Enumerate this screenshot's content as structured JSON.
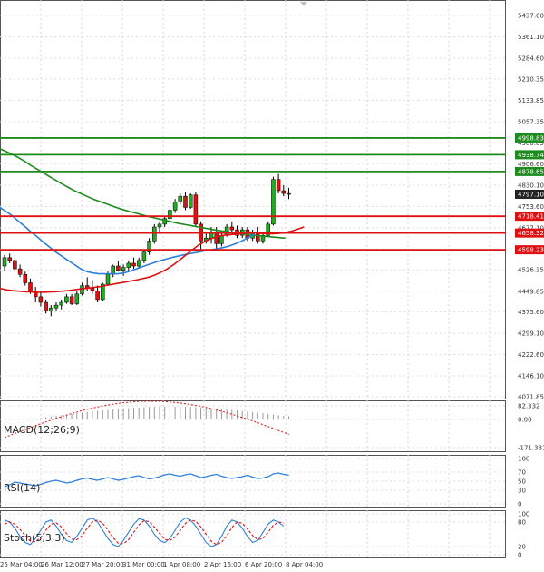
{
  "chart_data": {
    "type": "candlestick",
    "main": {
      "ylim": [
        4071.85,
        5437.6
      ],
      "ytick_labels": [
        "5437.60",
        "5361.10",
        "5284.60",
        "5210.35",
        "5133.85",
        "5057.35",
        "4980.85",
        "4906.60",
        "4830.10",
        "4753.60",
        "4677.10",
        "4600.60",
        "4526.35",
        "4449.85",
        "4375.60",
        "4299.10",
        "4222.60",
        "4146.10",
        "4071.85"
      ],
      "last_price": 4797.1,
      "last_price_label": "4797.10",
      "levels": [
        {
          "value": 4998.83,
          "label": "4998.83",
          "color": "#1e8b1e"
        },
        {
          "value": 4938.74,
          "label": "4938.74",
          "color": "#1e8b1e"
        },
        {
          "value": 4878.65,
          "label": "4878.65",
          "color": "#1e8b1e"
        },
        {
          "value": 4718.41,
          "label": "4718.41",
          "color": "#dd1111"
        },
        {
          "value": 4658.32,
          "label": "4658.32",
          "color": "#dd1111"
        },
        {
          "value": 4598.23,
          "label": "4598.23",
          "color": "#dd1111"
        }
      ],
      "candles": [
        [
          4540,
          4580,
          4520,
          4570
        ],
        [
          4570,
          4585,
          4550,
          4560
        ],
        [
          4560,
          4570,
          4520,
          4530
        ],
        [
          4530,
          4545,
          4500,
          4510
        ],
        [
          4510,
          4520,
          4470,
          4480
        ],
        [
          4480,
          4495,
          4440,
          4450
        ],
        [
          4450,
          4465,
          4410,
          4430
        ],
        [
          4430,
          4450,
          4395,
          4410
        ],
        [
          4410,
          4420,
          4370,
          4380
        ],
        [
          4380,
          4400,
          4360,
          4390
        ],
        [
          4390,
          4410,
          4380,
          4400
        ],
        [
          4400,
          4420,
          4385,
          4410
        ],
        [
          4410,
          4440,
          4405,
          4430
        ],
        [
          4430,
          4440,
          4400,
          4405
        ],
        [
          4405,
          4450,
          4400,
          4440
        ],
        [
          4440,
          4480,
          4435,
          4470
        ],
        [
          4470,
          4500,
          4450,
          4460
        ],
        [
          4460,
          4490,
          4440,
          4450
        ],
        [
          4450,
          4470,
          4410,
          4420
        ],
        [
          4420,
          4480,
          4415,
          4475
        ],
        [
          4475,
          4520,
          4470,
          4510
        ],
        [
          4510,
          4545,
          4500,
          4540
        ],
        [
          4540,
          4560,
          4520,
          4525
        ],
        [
          4525,
          4545,
          4505,
          4535
        ],
        [
          4535,
          4560,
          4520,
          4550
        ],
        [
          4550,
          4570,
          4530,
          4540
        ],
        [
          4540,
          4570,
          4530,
          4560
        ],
        [
          4560,
          4600,
          4550,
          4590
        ],
        [
          4590,
          4640,
          4580,
          4630
        ],
        [
          4630,
          4690,
          4620,
          4680
        ],
        [
          4680,
          4700,
          4660,
          4690
        ],
        [
          4690,
          4720,
          4680,
          4710
        ],
        [
          4710,
          4750,
          4700,
          4740
        ],
        [
          4740,
          4780,
          4730,
          4770
        ],
        [
          4770,
          4800,
          4760,
          4790
        ],
        [
          4790,
          4805,
          4740,
          4750
        ],
        [
          4750,
          4800,
          4745,
          4795
        ],
        [
          4795,
          4805,
          4680,
          4690
        ],
        [
          4690,
          4700,
          4600,
          4630
        ],
        [
          4630,
          4660,
          4620,
          4640
        ],
        [
          4640,
          4680,
          4620,
          4660
        ],
        [
          4660,
          4680,
          4600,
          4620
        ],
        [
          4620,
          4660,
          4610,
          4650
        ],
        [
          4650,
          4690,
          4645,
          4680
        ],
        [
          4680,
          4700,
          4660,
          4670
        ],
        [
          4670,
          4685,
          4640,
          4650
        ],
        [
          4650,
          4680,
          4640,
          4670
        ],
        [
          4670,
          4680,
          4630,
          4640
        ],
        [
          4640,
          4670,
          4630,
          4660
        ],
        [
          4660,
          4680,
          4620,
          4630
        ],
        [
          4630,
          4660,
          4620,
          4650
        ],
        [
          4650,
          4700,
          4645,
          4690
        ],
        [
          4690,
          4860,
          4685,
          4850
        ],
        [
          4850,
          4870,
          4800,
          4810
        ],
        [
          4810,
          4830,
          4790,
          4800
        ],
        [
          4800,
          4820,
          4780,
          4797.1
        ]
      ],
      "ma_green": [
        4960,
        4950,
        4940,
        4928,
        4915,
        4900,
        4887,
        4874,
        4860,
        4847,
        4834,
        4822,
        4810,
        4800,
        4790,
        4780,
        4772,
        4764,
        4756,
        4748,
        4741,
        4735,
        4729,
        4723,
        4717,
        4712,
        4707,
        4702,
        4697,
        4692,
        4688,
        4684,
        4680,
        4676,
        4672,
        4668,
        4665,
        4662,
        4659,
        4656,
        4653,
        4650,
        4648,
        4646,
        4644,
        4642,
        4640
      ],
      "ma_blue": [
        4750,
        4735,
        4720,
        4700,
        4682,
        4662,
        4645,
        4625,
        4608,
        4590,
        4575,
        4560,
        4545,
        4530,
        4520,
        4515,
        4512,
        4512,
        4512,
        4512,
        4515,
        4522,
        4530,
        4538,
        4546,
        4553,
        4560,
        4566,
        4572,
        4577,
        4582,
        4586,
        4590,
        4594,
        4598,
        4602,
        4606,
        4612,
        4620,
        4630,
        4642,
        4655
      ],
      "ma_red": [
        4460,
        4455,
        4452,
        4450,
        4448,
        4447,
        4446,
        4446,
        4447,
        4448,
        4450,
        4452,
        4455,
        4458,
        4460,
        4463,
        4466,
        4470,
        4474,
        4478,
        4482,
        4486,
        4490,
        4495,
        4500,
        4508,
        4518,
        4530,
        4545,
        4562,
        4580,
        4598,
        4615,
        4628,
        4638,
        4645,
        4650,
        4652,
        4654,
        4656,
        4658,
        4658,
        4657,
        4656,
        4656,
        4657,
        4660,
        4665,
        4672,
        4680
      ]
    },
    "macd": {
      "label": "MACD(12;26;9)",
      "ylim": [
        -171.331,
        82.332
      ],
      "ytick_labels": [
        "82.332",
        "0.00",
        "-171.331"
      ]
    },
    "rsi": {
      "label": "RSI(14)",
      "ytick_labels": [
        "100",
        "70",
        "50",
        "30",
        "0"
      ],
      "values": [
        38,
        42,
        48,
        46,
        44,
        42,
        40,
        43,
        47,
        50,
        52,
        49,
        46,
        48,
        52,
        55,
        57,
        54,
        52,
        55,
        58,
        55,
        52,
        54,
        57,
        60,
        62,
        58,
        55,
        57,
        60,
        64,
        66,
        63,
        61,
        64,
        66,
        62,
        58,
        60,
        63,
        65,
        61,
        58,
        56,
        58,
        60,
        63,
        59,
        56,
        57,
        60,
        66,
        68,
        65,
        63
      ]
    },
    "stoch": {
      "label": "Stoch(5,3,3)",
      "ytick_labels": [
        "100",
        "80",
        "20",
        "0"
      ],
      "k": [
        85,
        80,
        65,
        45,
        30,
        25,
        40,
        60,
        80,
        85,
        70,
        50,
        35,
        30,
        45,
        65,
        85,
        90,
        80,
        60,
        40,
        25,
        20,
        35,
        55,
        75,
        88,
        85,
        70,
        50,
        35,
        30,
        40,
        60,
        80,
        90,
        85,
        70,
        50,
        30,
        20,
        25,
        45,
        70,
        85,
        80,
        65,
        45,
        30,
        35,
        55,
        75,
        85,
        80,
        70
      ],
      "d": [
        75,
        80,
        75,
        62,
        47,
        33,
        32,
        42,
        60,
        75,
        78,
        68,
        52,
        38,
        37,
        47,
        65,
        80,
        85,
        77,
        60,
        42,
        28,
        27,
        37,
        55,
        73,
        83,
        81,
        68,
        52,
        38,
        35,
        43,
        60,
        77,
        85,
        82,
        68,
        50,
        33,
        25,
        30,
        47,
        67,
        80,
        77,
        63,
        47,
        37,
        40,
        55,
        72,
        80,
        78
      ]
    },
    "x_labels": [
      "25 Mar 04:00",
      "26 Mar 12:00",
      "27 Mar 20:00",
      "31 Mar 00:00",
      "1 Apr 08:00",
      "2 Apr 16:00",
      "6 Apr 20:00",
      "8 Apr 04:00"
    ]
  }
}
